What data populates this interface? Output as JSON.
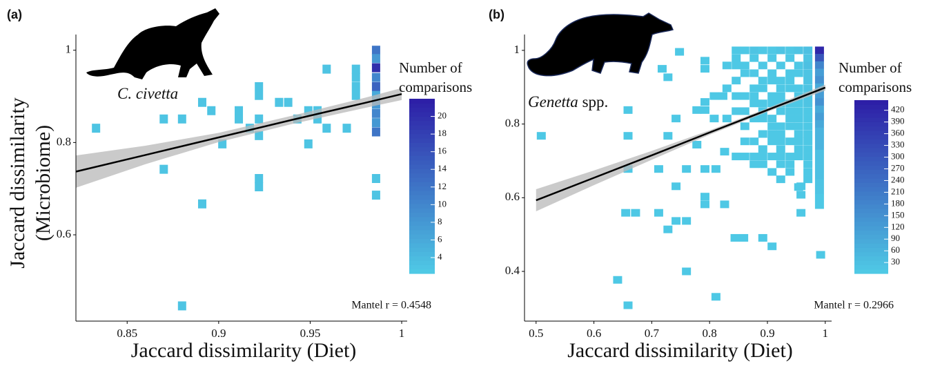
{
  "chart_data": [
    {
      "type": "heatmap",
      "panel_label": "(a)",
      "species_label": {
        "italic": "C. civetta"
      },
      "xlabel": "Jaccard dissimilarity (Diet)",
      "ylabel": [
        "Jaccard dissimilarity",
        "(Microbiome)"
      ],
      "xlim": [
        0.822,
        1.003
      ],
      "ylim": [
        0.413,
        1.034
      ],
      "xticks": [
        0.85,
        0.9,
        0.95,
        1
      ],
      "yticks": [
        0.6,
        0.8,
        1
      ],
      "tiles": [
        [
          0.833,
          0.831,
          3
        ],
        [
          0.87,
          0.742,
          3
        ],
        [
          0.87,
          0.851,
          3
        ],
        [
          0.88,
          0.851,
          3
        ],
        [
          0.88,
          0.446,
          3
        ],
        [
          0.891,
          0.887,
          3
        ],
        [
          0.891,
          0.667,
          3
        ],
        [
          0.896,
          0.869,
          3
        ],
        [
          0.902,
          0.797,
          3
        ],
        [
          0.911,
          0.869,
          3
        ],
        [
          0.911,
          0.851,
          3
        ],
        [
          0.917,
          0.831,
          3
        ],
        [
          0.922,
          0.921,
          3
        ],
        [
          0.922,
          0.902,
          3
        ],
        [
          0.922,
          0.851,
          3
        ],
        [
          0.922,
          0.815,
          3
        ],
        [
          0.922,
          0.722,
          3
        ],
        [
          0.922,
          0.704,
          3
        ],
        [
          0.933,
          0.887,
          3
        ],
        [
          0.938,
          0.887,
          3
        ],
        [
          0.943,
          0.851,
          3
        ],
        [
          0.949,
          0.797,
          3
        ],
        [
          0.949,
          0.869,
          3
        ],
        [
          0.954,
          0.869,
          3
        ],
        [
          0.954,
          0.851,
          3
        ],
        [
          0.959,
          0.831,
          3
        ],
        [
          0.959,
          0.959,
          3
        ],
        [
          0.97,
          0.831,
          3
        ],
        [
          0.975,
          0.959,
          3
        ],
        [
          0.975,
          0.941,
          3
        ],
        [
          0.975,
          0.921,
          3
        ],
        [
          0.975,
          0.902,
          3
        ],
        [
          0.986,
          1.0,
          12
        ],
        [
          0.986,
          0.982,
          8
        ],
        [
          0.986,
          0.962,
          20
        ],
        [
          0.986,
          0.941,
          10
        ],
        [
          0.986,
          0.921,
          14
        ],
        [
          0.986,
          0.902,
          6
        ],
        [
          0.986,
          0.883,
          8
        ],
        [
          0.986,
          0.863,
          10
        ],
        [
          0.986,
          0.843,
          8
        ],
        [
          0.986,
          0.823,
          12
        ],
        [
          0.986,
          0.722,
          3
        ],
        [
          0.986,
          0.686,
          3
        ]
      ],
      "fit": {
        "x": [
          0.822,
          0.86,
          0.9,
          0.94,
          0.98,
          1.0
        ],
        "y": [
          0.737,
          0.773,
          0.811,
          0.849,
          0.886,
          0.905
        ],
        "lower": [
          0.702,
          0.753,
          0.801,
          0.84,
          0.875,
          0.892
        ],
        "upper": [
          0.772,
          0.793,
          0.821,
          0.858,
          0.897,
          0.918
        ]
      },
      "legend_title": [
        "Number of",
        "comparisons"
      ],
      "clim": [
        2.2,
        22
      ],
      "cticks": [
        4,
        6,
        8,
        10,
        12,
        14,
        16,
        18,
        20
      ],
      "colors": [
        "#4fcbe6",
        "#2d1da6"
      ],
      "annotation": "Mantel r = 0.4548"
    },
    {
      "type": "heatmap",
      "panel_label": "(b)",
      "species_label": {
        "italic": "Genetta",
        "plain": "spp."
      },
      "xlabel": "Jaccard dissimilarity (Diet)",
      "xlim": [
        0.48,
        1.011
      ],
      "ylim": [
        0.265,
        1.043
      ],
      "xticks": [
        0.5,
        0.6,
        0.7,
        0.8,
        0.9,
        1
      ],
      "yticks": [
        0.4,
        0.6,
        0.8,
        1
      ],
      "tiles": [
        [
          0.509,
          0.768,
          10
        ],
        [
          0.641,
          0.377,
          10
        ],
        [
          0.659,
          0.308,
          10
        ],
        [
          0.659,
          0.838,
          10
        ],
        [
          0.659,
          0.768,
          10
        ],
        [
          0.659,
          0.678,
          10
        ],
        [
          0.655,
          0.559,
          10
        ],
        [
          0.672,
          0.559,
          10
        ],
        [
          0.712,
          0.559,
          10
        ],
        [
          0.728,
          0.514,
          10
        ],
        [
          0.728,
          0.768,
          10
        ],
        [
          0.712,
          0.678,
          10
        ],
        [
          0.718,
          0.95,
          10
        ],
        [
          0.728,
          0.927,
          10
        ],
        [
          0.748,
          0.996,
          10
        ],
        [
          0.742,
          0.537,
          10
        ],
        [
          0.76,
          0.537,
          10
        ],
        [
          0.76,
          0.4,
          10
        ],
        [
          0.742,
          0.631,
          10
        ],
        [
          0.76,
          0.678,
          10
        ],
        [
          0.742,
          0.815,
          10
        ],
        [
          0.778,
          0.744,
          10
        ],
        [
          0.792,
          0.678,
          10
        ],
        [
          0.792,
          0.603,
          10
        ],
        [
          0.792,
          0.582,
          10
        ],
        [
          0.792,
          0.972,
          10
        ],
        [
          0.792,
          0.95,
          10
        ],
        [
          0.778,
          0.838,
          10
        ],
        [
          0.792,
          0.838,
          10
        ],
        [
          0.792,
          0.86,
          10
        ],
        [
          0.808,
          0.815,
          10
        ],
        [
          0.811,
          0.678,
          10
        ],
        [
          0.811,
          0.331,
          10
        ],
        [
          0.826,
          0.582,
          10
        ],
        [
          0.826,
          0.725,
          10
        ],
        [
          0.844,
          0.491,
          10
        ],
        [
          0.859,
          0.491,
          10
        ],
        [
          0.892,
          0.491,
          10
        ],
        [
          0.908,
          0.468,
          10
        ],
        [
          0.958,
          0.559,
          10
        ],
        [
          0.958,
          0.608,
          10
        ],
        [
          0.958,
          0.631,
          10
        ],
        [
          0.992,
          0.445,
          10
        ],
        [
          0.846,
          1.0,
          10
        ],
        [
          0.861,
          1.0,
          10
        ],
        [
          0.877,
          1.0,
          20
        ],
        [
          0.892,
          1.0,
          10
        ],
        [
          0.908,
          1.0,
          10
        ],
        [
          0.923,
          1.0,
          20
        ],
        [
          0.939,
          1.0,
          10
        ],
        [
          0.954,
          1.0,
          20
        ],
        [
          0.97,
          1.0,
          30
        ],
        [
          0.846,
          0.979,
          10
        ],
        [
          0.877,
          0.979,
          10
        ],
        [
          0.908,
          0.979,
          10
        ],
        [
          0.939,
          0.979,
          10
        ],
        [
          0.97,
          0.979,
          20
        ],
        [
          0.83,
          0.959,
          10
        ],
        [
          0.846,
          0.959,
          10
        ],
        [
          0.861,
          0.959,
          10
        ],
        [
          0.892,
          0.959,
          10
        ],
        [
          0.923,
          0.959,
          10
        ],
        [
          0.954,
          0.959,
          10
        ],
        [
          0.97,
          0.959,
          30
        ],
        [
          0.861,
          0.938,
          10
        ],
        [
          0.877,
          0.938,
          10
        ],
        [
          0.908,
          0.938,
          10
        ],
        [
          0.939,
          0.938,
          10
        ],
        [
          0.954,
          0.938,
          10
        ],
        [
          0.97,
          0.938,
          20
        ],
        [
          0.846,
          0.918,
          10
        ],
        [
          0.892,
          0.918,
          10
        ],
        [
          0.908,
          0.918,
          10
        ],
        [
          0.923,
          0.918,
          10
        ],
        [
          0.939,
          0.918,
          10
        ],
        [
          0.97,
          0.918,
          20
        ],
        [
          0.83,
          0.897,
          10
        ],
        [
          0.877,
          0.897,
          10
        ],
        [
          0.892,
          0.897,
          10
        ],
        [
          0.923,
          0.897,
          10
        ],
        [
          0.939,
          0.897,
          10
        ],
        [
          0.954,
          0.897,
          10
        ],
        [
          0.97,
          0.897,
          20
        ],
        [
          0.808,
          0.876,
          10
        ],
        [
          0.823,
          0.876,
          10
        ],
        [
          0.846,
          0.876,
          10
        ],
        [
          0.861,
          0.876,
          10
        ],
        [
          0.877,
          0.876,
          10
        ],
        [
          0.908,
          0.876,
          10
        ],
        [
          0.923,
          0.876,
          10
        ],
        [
          0.954,
          0.876,
          10
        ],
        [
          0.97,
          0.876,
          20
        ],
        [
          0.877,
          0.856,
          10
        ],
        [
          0.892,
          0.856,
          10
        ],
        [
          0.908,
          0.856,
          10
        ],
        [
          0.923,
          0.856,
          10
        ],
        [
          0.939,
          0.856,
          10
        ],
        [
          0.954,
          0.856,
          10
        ],
        [
          0.97,
          0.856,
          20
        ],
        [
          0.846,
          0.835,
          10
        ],
        [
          0.861,
          0.835,
          10
        ],
        [
          0.892,
          0.835,
          10
        ],
        [
          0.923,
          0.835,
          10
        ],
        [
          0.939,
          0.835,
          10
        ],
        [
          0.954,
          0.835,
          10
        ],
        [
          0.97,
          0.835,
          10
        ],
        [
          0.83,
          0.815,
          10
        ],
        [
          0.877,
          0.815,
          10
        ],
        [
          0.892,
          0.815,
          10
        ],
        [
          0.908,
          0.815,
          10
        ],
        [
          0.939,
          0.815,
          10
        ],
        [
          0.954,
          0.815,
          10
        ],
        [
          0.97,
          0.815,
          10
        ],
        [
          0.861,
          0.794,
          10
        ],
        [
          0.908,
          0.794,
          10
        ],
        [
          0.923,
          0.794,
          10
        ],
        [
          0.939,
          0.794,
          10
        ],
        [
          0.954,
          0.794,
          10
        ],
        [
          0.97,
          0.794,
          10
        ],
        [
          0.892,
          0.773,
          10
        ],
        [
          0.908,
          0.773,
          10
        ],
        [
          0.923,
          0.773,
          10
        ],
        [
          0.954,
          0.773,
          10
        ],
        [
          0.97,
          0.773,
          10
        ],
        [
          0.861,
          0.753,
          10
        ],
        [
          0.877,
          0.753,
          10
        ],
        [
          0.908,
          0.753,
          10
        ],
        [
          0.923,
          0.753,
          10
        ],
        [
          0.939,
          0.753,
          10
        ],
        [
          0.954,
          0.753,
          10
        ],
        [
          0.97,
          0.753,
          10
        ],
        [
          0.892,
          0.732,
          10
        ],
        [
          0.923,
          0.732,
          10
        ],
        [
          0.954,
          0.732,
          10
        ],
        [
          0.97,
          0.732,
          10
        ],
        [
          0.846,
          0.712,
          10
        ],
        [
          0.861,
          0.712,
          10
        ],
        [
          0.877,
          0.712,
          10
        ],
        [
          0.892,
          0.712,
          10
        ],
        [
          0.908,
          0.712,
          10
        ],
        [
          0.923,
          0.712,
          10
        ],
        [
          0.939,
          0.712,
          10
        ],
        [
          0.954,
          0.712,
          10
        ],
        [
          0.97,
          0.712,
          10
        ],
        [
          0.877,
          0.691,
          10
        ],
        [
          0.892,
          0.691,
          10
        ],
        [
          0.923,
          0.691,
          10
        ],
        [
          0.939,
          0.691,
          10
        ],
        [
          0.97,
          0.691,
          10
        ],
        [
          0.908,
          0.67,
          10
        ],
        [
          0.939,
          0.67,
          10
        ],
        [
          0.97,
          0.67,
          10
        ],
        [
          0.923,
          0.65,
          10
        ],
        [
          0.97,
          0.65,
          10
        ],
        [
          0.954,
          0.629,
          10
        ],
        [
          0.99,
          1.0,
          420
        ],
        [
          0.99,
          0.98,
          300
        ],
        [
          0.99,
          0.96,
          180
        ],
        [
          0.99,
          0.94,
          120
        ],
        [
          0.99,
          0.92,
          150
        ],
        [
          0.99,
          0.9,
          90
        ],
        [
          0.99,
          0.88,
          120
        ],
        [
          0.99,
          0.86,
          150
        ],
        [
          0.99,
          0.84,
          90
        ],
        [
          0.99,
          0.82,
          120
        ],
        [
          0.99,
          0.8,
          90
        ],
        [
          0.99,
          0.78,
          60
        ],
        [
          0.99,
          0.76,
          60
        ],
        [
          0.99,
          0.74,
          60
        ],
        [
          0.99,
          0.72,
          30
        ],
        [
          0.99,
          0.7,
          30
        ],
        [
          0.99,
          0.68,
          30
        ],
        [
          0.99,
          0.66,
          30
        ],
        [
          0.99,
          0.64,
          20
        ],
        [
          0.99,
          0.62,
          20
        ],
        [
          0.99,
          0.6,
          10
        ],
        [
          0.99,
          0.58,
          10
        ]
      ],
      "fit": {
        "x": [
          0.5,
          0.6,
          0.7,
          0.8,
          0.9,
          1.0
        ],
        "y": [
          0.593,
          0.654,
          0.715,
          0.777,
          0.838,
          0.899
        ],
        "lower": [
          0.563,
          0.634,
          0.703,
          0.771,
          0.833,
          0.891
        ],
        "upper": [
          0.623,
          0.674,
          0.727,
          0.783,
          0.843,
          0.907
        ]
      },
      "legend_title": [
        "Number of",
        "comparisons"
      ],
      "clim": [
        2,
        446
      ],
      "cticks": [
        30,
        60,
        90,
        120,
        150,
        180,
        210,
        240,
        270,
        300,
        330,
        360,
        390,
        420
      ],
      "colors": [
        "#4fcbe6",
        "#2d1da6"
      ],
      "annotation": "Mantel r = 0.2966"
    }
  ]
}
